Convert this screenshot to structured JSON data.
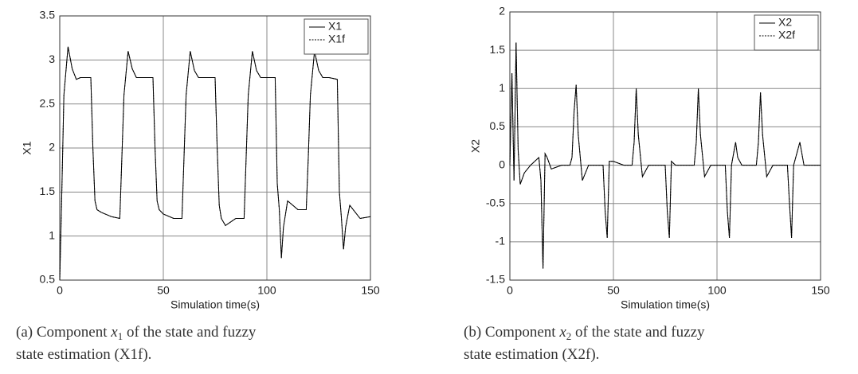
{
  "chart_data": [
    {
      "type": "line",
      "xlabel": "Simulation time(s)",
      "ylabel": "X1",
      "x": [
        0,
        1,
        2,
        4,
        6,
        8,
        10,
        15,
        16,
        17,
        18,
        20,
        25,
        29,
        30,
        31,
        33,
        35,
        37,
        40,
        45,
        46,
        47,
        48,
        50,
        55,
        59,
        60,
        61,
        63,
        65,
        67,
        70,
        75,
        76,
        77,
        78,
        80,
        85,
        89,
        90,
        91,
        93,
        95,
        97,
        100,
        104,
        105,
        106,
        107,
        108,
        110,
        115,
        119,
        120,
        121,
        123,
        125,
        127,
        130,
        134,
        135,
        136,
        137,
        138,
        140,
        145,
        150
      ],
      "series": [
        {
          "name": "X1",
          "color": "#000000",
          "dash": false,
          "values": [
            0.5,
            1.5,
            2.6,
            3.15,
            2.9,
            2.78,
            2.8,
            2.8,
            2.0,
            1.4,
            1.3,
            1.27,
            1.22,
            1.2,
            1.9,
            2.6,
            3.1,
            2.9,
            2.8,
            2.8,
            2.8,
            2.0,
            1.4,
            1.3,
            1.25,
            1.2,
            1.2,
            1.9,
            2.6,
            3.1,
            2.88,
            2.8,
            2.8,
            2.8,
            2.0,
            1.35,
            1.2,
            1.12,
            1.2,
            1.2,
            1.9,
            2.6,
            3.1,
            2.88,
            2.8,
            2.8,
            2.8,
            1.6,
            1.3,
            0.75,
            1.1,
            1.4,
            1.3,
            1.3,
            1.9,
            2.6,
            3.1,
            2.88,
            2.8,
            2.8,
            2.78,
            1.5,
            1.2,
            0.85,
            1.1,
            1.35,
            1.2,
            1.22
          ]
        },
        {
          "name": "X1f",
          "color": "#000000",
          "dash": true,
          "values": [
            0.5,
            1.5,
            2.6,
            3.15,
            2.9,
            2.78,
            2.8,
            2.8,
            2.0,
            1.4,
            1.3,
            1.27,
            1.22,
            1.2,
            1.9,
            2.6,
            3.1,
            2.9,
            2.8,
            2.8,
            2.8,
            2.0,
            1.4,
            1.3,
            1.25,
            1.2,
            1.2,
            1.9,
            2.6,
            3.1,
            2.88,
            2.8,
            2.8,
            2.8,
            2.0,
            1.35,
            1.2,
            1.12,
            1.2,
            1.2,
            1.9,
            2.6,
            3.1,
            2.88,
            2.8,
            2.8,
            2.8,
            1.6,
            1.3,
            0.75,
            1.1,
            1.4,
            1.3,
            1.3,
            1.9,
            2.6,
            3.1,
            2.88,
            2.8,
            2.8,
            2.78,
            1.5,
            1.2,
            0.85,
            1.1,
            1.35,
            1.2,
            1.22
          ]
        }
      ],
      "xlim": [
        0,
        150
      ],
      "xticks": [
        0,
        50,
        100,
        150
      ],
      "ylim": [
        0.5,
        3.5
      ],
      "yticks": [
        0.5,
        1,
        1.5,
        2,
        2.5,
        3,
        3.5
      ],
      "grid": true,
      "legend": "upper right"
    },
    {
      "type": "line",
      "xlabel": "Simulation time(s)",
      "ylabel": "X2",
      "x": [
        0,
        1,
        2,
        3,
        4,
        5,
        7,
        10,
        14,
        15,
        16,
        17,
        18,
        20,
        25,
        29,
        30,
        31,
        32,
        33,
        35,
        38,
        45,
        46,
        47,
        48,
        50,
        55,
        59,
        60,
        61,
        62,
        64,
        67,
        75,
        76,
        77,
        78,
        80,
        89,
        90,
        91,
        92,
        94,
        97,
        104,
        105,
        106,
        107,
        109,
        110,
        112,
        119,
        120,
        121,
        122,
        124,
        127,
        134,
        135,
        136,
        137,
        140,
        142,
        145,
        150
      ],
      "series": [
        {
          "name": "X2",
          "color": "#000000",
          "dash": false,
          "values": [
            0,
            1.2,
            -0.2,
            1.6,
            0.2,
            -0.25,
            -0.1,
            0,
            0.1,
            -0.2,
            -1.35,
            0.15,
            0.1,
            -0.05,
            0,
            0,
            0.1,
            0.7,
            1.05,
            0.4,
            -0.2,
            0,
            0,
            -0.6,
            -0.95,
            0.05,
            0.05,
            0,
            0,
            0.3,
            1.0,
            0.4,
            -0.15,
            0,
            0,
            -0.6,
            -0.95,
            0.05,
            0,
            0,
            0.3,
            1.0,
            0.4,
            -0.15,
            0,
            0,
            -0.6,
            -0.95,
            0,
            0.3,
            0.1,
            0,
            0,
            0.3,
            0.95,
            0.4,
            -0.15,
            0,
            0,
            -0.5,
            -0.95,
            0,
            0.3,
            0,
            0,
            0
          ]
        },
        {
          "name": "X2f",
          "color": "#000000",
          "dash": true,
          "values": [
            0,
            1.2,
            -0.2,
            1.6,
            0.2,
            -0.25,
            -0.1,
            0,
            0.1,
            -0.2,
            -1.35,
            0.15,
            0.1,
            -0.05,
            0,
            0,
            0.1,
            0.7,
            1.05,
            0.4,
            -0.2,
            0,
            0,
            -0.6,
            -0.95,
            0.05,
            0.05,
            0,
            0,
            0.3,
            1.0,
            0.4,
            -0.15,
            0,
            0,
            -0.6,
            -0.95,
            0.05,
            0,
            0,
            0.3,
            1.0,
            0.4,
            -0.15,
            0,
            0,
            -0.6,
            -0.95,
            0,
            0.3,
            0.1,
            0,
            0,
            0.3,
            0.95,
            0.4,
            -0.15,
            0,
            0,
            -0.5,
            -0.95,
            0,
            0.3,
            0,
            0,
            0
          ]
        }
      ],
      "xlim": [
        0,
        150
      ],
      "xticks": [
        0,
        50,
        100,
        150
      ],
      "ylim": [
        -1.5,
        2
      ],
      "yticks": [
        -1.5,
        -1,
        -0.5,
        0,
        0.5,
        1,
        1.5,
        2
      ],
      "grid": true,
      "legend": "upper right"
    }
  ],
  "captions": [
    {
      "prefix": "(a) Component ",
      "var": "x",
      "sub": "1",
      "rest": " of the state and fuzzy",
      "line2": "state estimation (X1f)."
    },
    {
      "prefix": "(b) Component ",
      "var": "x",
      "sub": "2",
      "rest": " of the state and fuzzy",
      "line2": "state estimation (X2f)."
    }
  ]
}
